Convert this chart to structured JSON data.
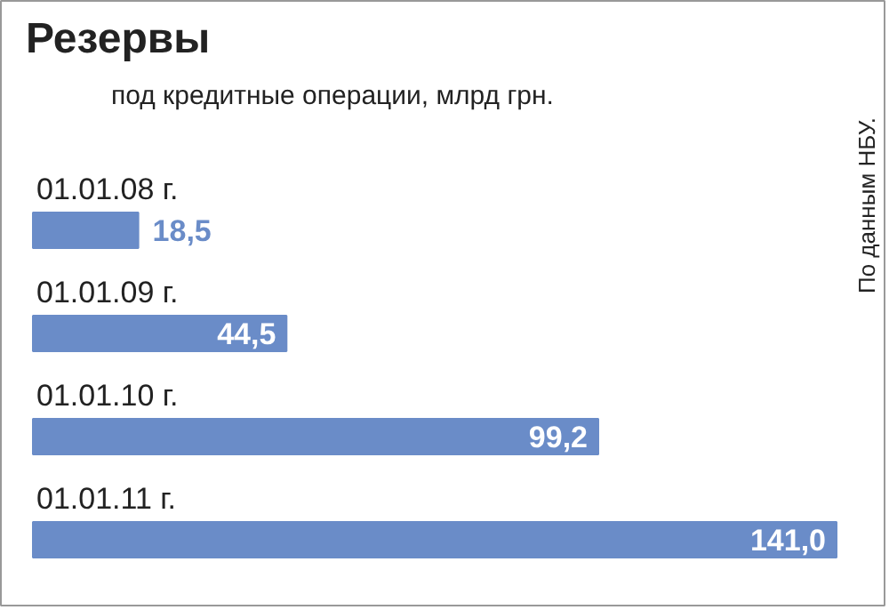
{
  "chart_data": {
    "type": "bar",
    "orientation": "horizontal",
    "title": "Резервы",
    "subtitle": "под кредитные операции, млрд грн.",
    "categories": [
      "01.01.08 г.",
      "01.01.09 г.",
      "01.01.10 г.",
      "01.01.11 г."
    ],
    "values": [
      18.5,
      44.5,
      99.2,
      141.0
    ],
    "value_labels": [
      "18,5",
      "44,5",
      "99,2",
      "141,0"
    ],
    "color": "#6a8cc8",
    "annotations": [
      "По данным НБУ."
    ]
  }
}
